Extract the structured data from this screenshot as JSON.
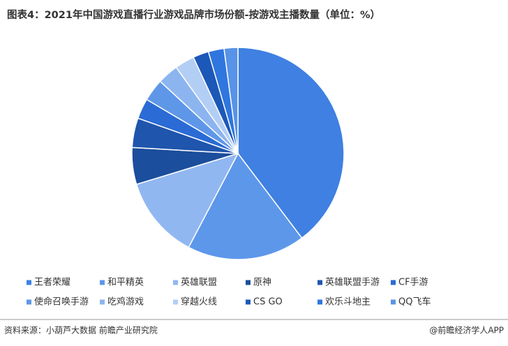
{
  "chart_data": {
    "type": "pie",
    "title": "图表4：2021年中国游戏直播行业游戏品牌市场份额-按游戏主播数量（单位：%）",
    "categories": [
      "王者荣耀",
      "和平精英",
      "英雄联盟",
      "原神",
      "英雄联盟手游",
      "CF手游",
      "使命召唤手游",
      "吃鸡游戏",
      "穿越火线",
      "CS GO",
      "欢乐斗地主",
      "QQ飞车"
    ],
    "values": [
      39.7,
      18,
      12.6,
      5.6,
      4.5,
      3.1,
      3.4,
      3.2,
      3.0,
      2.4,
      2.4,
      2.1
    ],
    "colors": [
      "#3f80e2",
      "#5d97ea",
      "#91b7f1",
      "#1b4e9c",
      "#1f55ad",
      "#2a6bd5",
      "#5f97e8",
      "#8cb5f0",
      "#b3cef5",
      "#1c58b8",
      "#2f76df",
      "#5893e7"
    ]
  },
  "source": "资料来源：小葫芦大数据 前瞻产业研究院",
  "credit": "@前瞻经济学人APP"
}
